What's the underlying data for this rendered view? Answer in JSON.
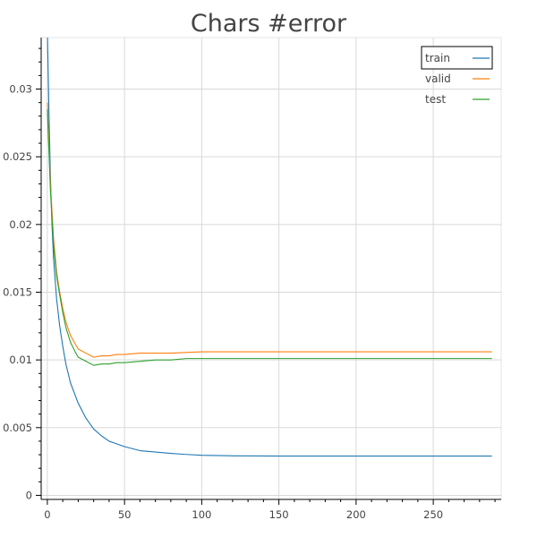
{
  "chart_data": {
    "type": "line",
    "title": "Chars #error",
    "xlabel": "",
    "ylabel": "",
    "xlim": [
      -4,
      294
    ],
    "ylim": [
      -0.0003,
      0.0338
    ],
    "x_ticks": [
      0,
      50,
      100,
      150,
      200,
      250
    ],
    "y_ticks": [
      0,
      0.005,
      0.01,
      0.015,
      0.02,
      0.025,
      0.03
    ],
    "y_tick_labels": [
      "0",
      "0.005",
      "0.01",
      "0.015",
      "0.02",
      "0.025",
      "0.03"
    ],
    "grid": true,
    "legend_position": "top-right",
    "series": [
      {
        "name": "train",
        "color": "#1f77b4",
        "x": [
          0,
          1,
          2,
          3,
          4,
          6,
          8,
          10,
          12,
          15,
          20,
          25,
          30,
          35,
          40,
          50,
          60,
          70,
          80,
          90,
          100,
          120,
          150,
          200,
          250,
          288
        ],
        "y": [
          0.0345,
          0.0285,
          0.0235,
          0.02,
          0.0175,
          0.0145,
          0.0125,
          0.011,
          0.0097,
          0.0083,
          0.0068,
          0.0057,
          0.0049,
          0.0044,
          0.004,
          0.0036,
          0.0033,
          0.0032,
          0.0031,
          0.00302,
          0.00296,
          0.00292,
          0.0029,
          0.0029,
          0.0029,
          0.0029
        ]
      },
      {
        "name": "valid",
        "color": "#ff7f0e",
        "x": [
          0,
          2,
          4,
          6,
          8,
          10,
          12,
          15,
          18,
          20,
          25,
          30,
          35,
          40,
          45,
          50,
          60,
          70,
          80,
          100,
          150,
          200,
          250,
          288
        ],
        "y": [
          0.029,
          0.023,
          0.019,
          0.0165,
          0.015,
          0.0138,
          0.0128,
          0.0118,
          0.0112,
          0.0108,
          0.0105,
          0.0102,
          0.0103,
          0.0103,
          0.0104,
          0.0104,
          0.0105,
          0.0105,
          0.0105,
          0.0106,
          0.0106,
          0.0106,
          0.0106,
          0.0106
        ]
      },
      {
        "name": "test",
        "color": "#2ca02c",
        "x": [
          0,
          2,
          4,
          6,
          8,
          10,
          12,
          15,
          18,
          20,
          25,
          30,
          35,
          40,
          45,
          50,
          60,
          70,
          80,
          90,
          100,
          150,
          200,
          250,
          288
        ],
        "y": [
          0.0285,
          0.0225,
          0.0185,
          0.0162,
          0.0148,
          0.0135,
          0.0124,
          0.0113,
          0.0106,
          0.0102,
          0.0099,
          0.0096,
          0.0097,
          0.0097,
          0.0098,
          0.0098,
          0.0099,
          0.01,
          0.01,
          0.0101,
          0.0101,
          0.0101,
          0.0101,
          0.0101,
          0.0101
        ]
      }
    ]
  }
}
